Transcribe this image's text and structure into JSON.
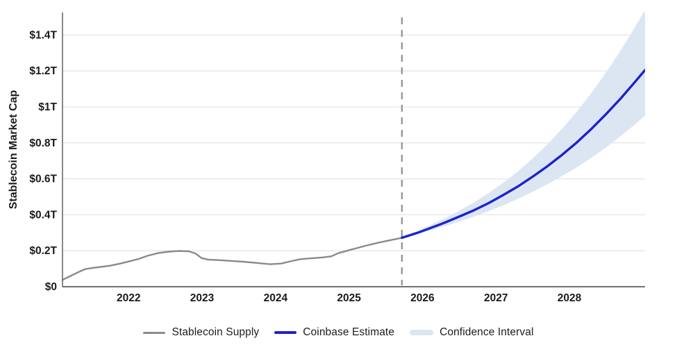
{
  "chart_data": {
    "type": "line",
    "title": "",
    "ylabel": "Stablecoin Market Cap",
    "x_axis": {
      "min": 2021.1,
      "max": 2029.03,
      "ticks": [
        2022,
        2023,
        2024,
        2025,
        2026,
        2027,
        2028
      ]
    },
    "y_axis": {
      "min": 0,
      "max": 1.525,
      "ticks": [
        {
          "value": 0,
          "label": "$0"
        },
        {
          "value": 0.2,
          "label": "$0.2T"
        },
        {
          "value": 0.4,
          "label": "$0.4T"
        },
        {
          "value": 0.6,
          "label": "$0.6T"
        },
        {
          "value": 0.8,
          "label": "$0.8T"
        },
        {
          "value": 1.0,
          "label": "$1T"
        },
        {
          "value": 1.2,
          "label": "$1.2T"
        },
        {
          "value": 1.4,
          "label": "$1.4T"
        }
      ]
    },
    "forecast_divider_x": 2025.72,
    "grid": true,
    "legend_position": "bottom",
    "colors": {
      "supply": "#8a8a8a",
      "estimate": "#1c22cc",
      "band": "#dce6f2",
      "divider": "#8f8f8f",
      "gridline": "#e5e5e5",
      "axis": "#6b6b6b",
      "text": "#1a1a1a"
    },
    "series": [
      {
        "name": "Stablecoin Supply",
        "points": [
          [
            2021.1,
            0.038
          ],
          [
            2021.2,
            0.058
          ],
          [
            2021.31,
            0.08
          ],
          [
            2021.41,
            0.098
          ],
          [
            2021.5,
            0.104
          ],
          [
            2021.62,
            0.11
          ],
          [
            2021.75,
            0.117
          ],
          [
            2021.88,
            0.128
          ],
          [
            2022.0,
            0.14
          ],
          [
            2022.14,
            0.155
          ],
          [
            2022.26,
            0.172
          ],
          [
            2022.41,
            0.188
          ],
          [
            2022.55,
            0.195
          ],
          [
            2022.69,
            0.199
          ],
          [
            2022.82,
            0.197
          ],
          [
            2022.91,
            0.185
          ],
          [
            2022.99,
            0.16
          ],
          [
            2023.08,
            0.151
          ],
          [
            2023.23,
            0.148
          ],
          [
            2023.37,
            0.144
          ],
          [
            2023.56,
            0.139
          ],
          [
            2023.75,
            0.132
          ],
          [
            2023.93,
            0.125
          ],
          [
            2024.08,
            0.129
          ],
          [
            2024.2,
            0.141
          ],
          [
            2024.33,
            0.153
          ],
          [
            2024.48,
            0.158
          ],
          [
            2024.64,
            0.163
          ],
          [
            2024.76,
            0.169
          ],
          [
            2024.85,
            0.186
          ],
          [
            2024.94,
            0.196
          ],
          [
            2025.08,
            0.212
          ],
          [
            2025.23,
            0.228
          ],
          [
            2025.39,
            0.244
          ],
          [
            2025.54,
            0.257
          ],
          [
            2025.65,
            0.266
          ],
          [
            2025.72,
            0.272
          ]
        ]
      },
      {
        "name": "Coinbase Estimate",
        "points": [
          [
            2025.72,
            0.272
          ],
          [
            2025.92,
            0.298
          ],
          [
            2026.1,
            0.325
          ],
          [
            2026.3,
            0.356
          ],
          [
            2026.5,
            0.39
          ],
          [
            2026.7,
            0.425
          ],
          [
            2026.9,
            0.465
          ],
          [
            2027.1,
            0.51
          ],
          [
            2027.3,
            0.558
          ],
          [
            2027.5,
            0.612
          ],
          [
            2027.7,
            0.67
          ],
          [
            2027.9,
            0.733
          ],
          [
            2028.1,
            0.802
          ],
          [
            2028.3,
            0.878
          ],
          [
            2028.5,
            0.96
          ],
          [
            2028.7,
            1.048
          ],
          [
            2028.9,
            1.142
          ],
          [
            2029.03,
            1.205
          ]
        ]
      }
    ],
    "band": {
      "name": "Confidence Interval",
      "points": [
        [
          2025.72,
          0.27,
          0.276
        ],
        [
          2025.92,
          0.29,
          0.308
        ],
        [
          2026.1,
          0.312,
          0.342
        ],
        [
          2026.3,
          0.336,
          0.38
        ],
        [
          2026.5,
          0.362,
          0.422
        ],
        [
          2026.7,
          0.39,
          0.468
        ],
        [
          2026.9,
          0.42,
          0.52
        ],
        [
          2027.1,
          0.453,
          0.578
        ],
        [
          2027.3,
          0.489,
          0.642
        ],
        [
          2027.5,
          0.528,
          0.713
        ],
        [
          2027.7,
          0.57,
          0.792
        ],
        [
          2027.9,
          0.615,
          0.878
        ],
        [
          2028.1,
          0.664,
          0.973
        ],
        [
          2028.3,
          0.717,
          1.078
        ],
        [
          2028.5,
          0.775,
          1.192
        ],
        [
          2028.7,
          0.838,
          1.315
        ],
        [
          2028.9,
          0.905,
          1.448
        ],
        [
          2029.03,
          0.952,
          1.54
        ]
      ]
    },
    "legend": [
      {
        "label": "Stablecoin Supply",
        "swatch": "line-gray"
      },
      {
        "label": "Coinbase Estimate",
        "swatch": "line-blue"
      },
      {
        "label": "Confidence Interval",
        "swatch": "band-lightblue"
      }
    ]
  }
}
